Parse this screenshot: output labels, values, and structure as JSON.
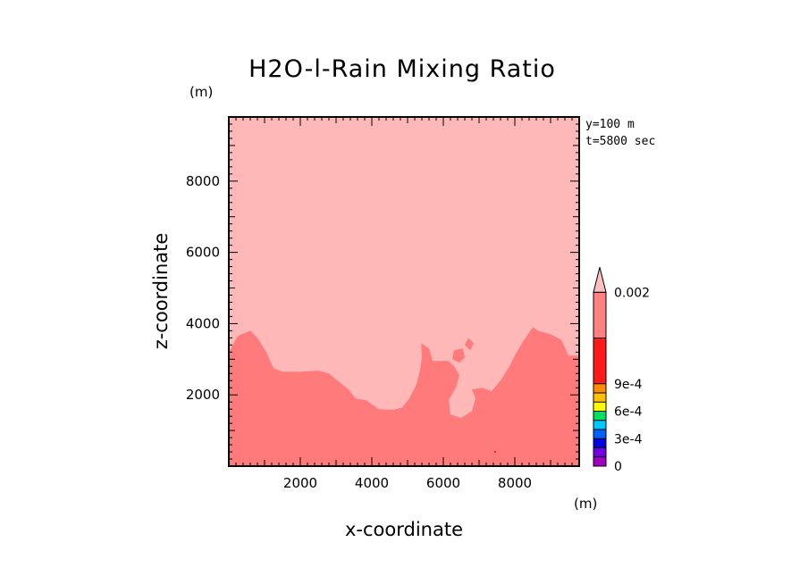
{
  "chart_data": {
    "type": "heatmap",
    "title": "H2O-l-Rain Mixing Ratio",
    "xlabel": "x-coordinate",
    "ylabel": "z-coordinate",
    "x_unit": "(m)",
    "y_unit": "(m)",
    "xlim": [
      0,
      9800
    ],
    "ylim": [
      0,
      9800
    ],
    "x_ticks": [
      2000,
      4000,
      6000,
      8000
    ],
    "y_ticks": [
      2000,
      4000,
      6000,
      8000
    ],
    "annotations": [
      "y=100 m",
      "t=5800 sec"
    ],
    "colors": {
      "upper_field": "#ffb8b8",
      "lower_field": "#ff7a7a",
      "speck": "#ff2020"
    },
    "lower_region_boundary": [
      [
        0,
        3200
      ],
      [
        250,
        3650
      ],
      [
        600,
        3800
      ],
      [
        800,
        3600
      ],
      [
        1050,
        3200
      ],
      [
        1250,
        2750
      ],
      [
        1500,
        2650
      ],
      [
        2000,
        2650
      ],
      [
        2500,
        2680
      ],
      [
        2800,
        2600
      ],
      [
        3100,
        2350
      ],
      [
        3350,
        2150
      ],
      [
        3550,
        1900
      ],
      [
        3850,
        1850
      ],
      [
        4050,
        1700
      ],
      [
        4200,
        1600
      ],
      [
        4600,
        1580
      ],
      [
        4850,
        1650
      ],
      [
        5050,
        1900
      ],
      [
        5250,
        2300
      ],
      [
        5350,
        2700
      ],
      [
        5400,
        3050
      ],
      [
        5380,
        3450
      ],
      [
        5600,
        3300
      ],
      [
        5700,
        2950
      ],
      [
        6150,
        2950
      ],
      [
        6300,
        2800
      ],
      [
        6450,
        2550
      ],
      [
        6350,
        2200
      ],
      [
        6150,
        1850
      ],
      [
        6200,
        1450
      ],
      [
        6500,
        1350
      ],
      [
        6800,
        1550
      ],
      [
        6900,
        1900
      ],
      [
        6800,
        2150
      ],
      [
        7100,
        2200
      ],
      [
        7350,
        2100
      ],
      [
        7600,
        2400
      ],
      [
        7850,
        2800
      ],
      [
        8000,
        3100
      ],
      [
        8200,
        3450
      ],
      [
        8500,
        3900
      ],
      [
        8650,
        3800
      ],
      [
        9000,
        3700
      ],
      [
        9300,
        3550
      ],
      [
        9500,
        3100
      ],
      [
        9800,
        3100
      ]
    ],
    "lower_region_islands": [
      [
        [
          6300,
          3250
        ],
        [
          6550,
          3300
        ],
        [
          6600,
          3050
        ],
        [
          6450,
          2900
        ],
        [
          6250,
          3000
        ]
      ],
      [
        [
          6700,
          3600
        ],
        [
          6850,
          3450
        ],
        [
          6750,
          3250
        ],
        [
          6600,
          3400
        ]
      ]
    ],
    "speck_point": [
      7450,
      400
    ],
    "colorbar": {
      "segments": [
        {
          "color": "#a000c0",
          "from": 0,
          "to": 1
        },
        {
          "color": "#7000e0",
          "from": 1,
          "to": 2
        },
        {
          "color": "#0000e0",
          "from": 2,
          "to": 3
        },
        {
          "color": "#0060ff",
          "from": 3,
          "to": 4
        },
        {
          "color": "#00c8ff",
          "from": 4,
          "to": 5
        },
        {
          "color": "#00e060",
          "from": 5,
          "to": 6
        },
        {
          "color": "#ffff00",
          "from": 6,
          "to": 7
        },
        {
          "color": "#ffc000",
          "from": 7,
          "to": 8
        },
        {
          "color": "#ff8c00",
          "from": 8,
          "to": 9
        },
        {
          "color": "#ff1a1a",
          "from": 9,
          "to": 14
        },
        {
          "color": "#ff8080",
          "from": 14,
          "to": 19
        }
      ],
      "overflow_color": "#ffc0c0",
      "labels": [
        {
          "text": "0",
          "pos": 0
        },
        {
          "text": "3e-4",
          "pos": 3
        },
        {
          "text": "6e-4",
          "pos": 6
        },
        {
          "text": "9e-4",
          "pos": 9
        },
        {
          "text": "0.002",
          "pos": 19
        }
      ]
    }
  }
}
